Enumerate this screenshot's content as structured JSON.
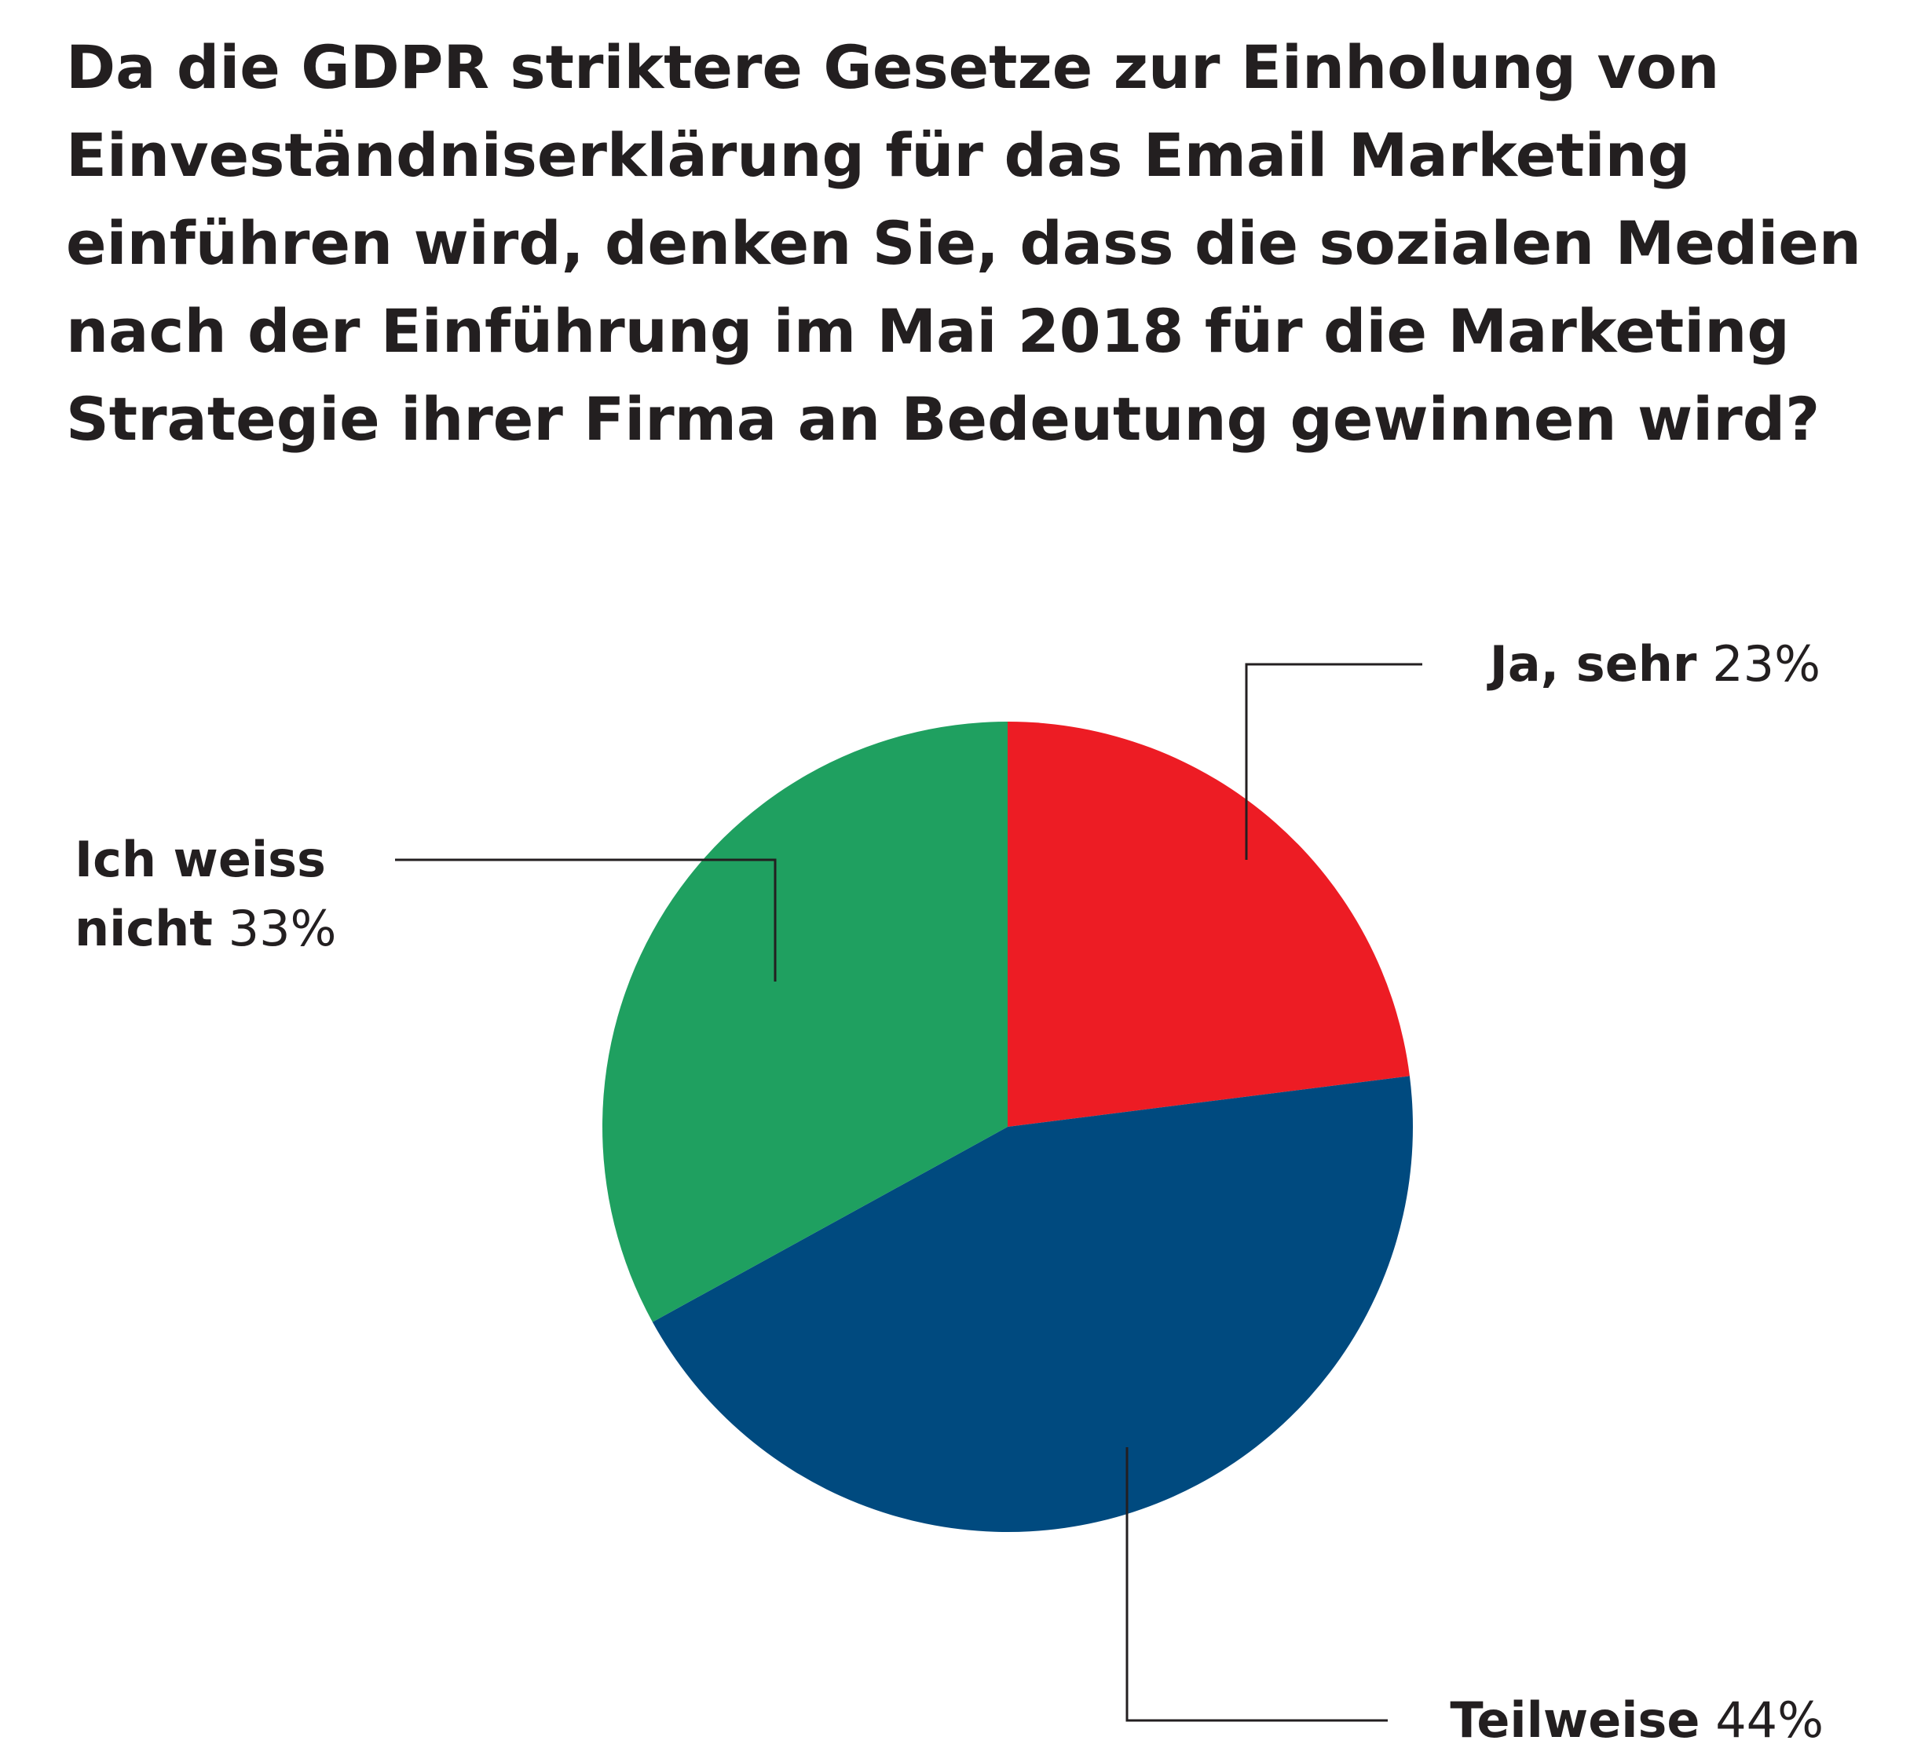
{
  "chart_data": {
    "type": "pie",
    "title": "Da die GDPR striktere Gesetze zur Einholung von Einveständniserklärung für das Email Marketing einführen wird, denken Sie, dass die sozialen Medien nach der Einführung im Mai 2018 für die Marketing Strategie ihrer Firma an Bedeutung gewinnen wird?",
    "categories": [
      "Ja, sehr",
      "Teilweise",
      "Ich weiss nicht"
    ],
    "values": [
      23,
      44,
      33
    ],
    "value_labels": [
      "23%",
      "44%",
      "33%"
    ],
    "colors": [
      "#ed1c24",
      "#004a7f",
      "#1fa060"
    ]
  }
}
